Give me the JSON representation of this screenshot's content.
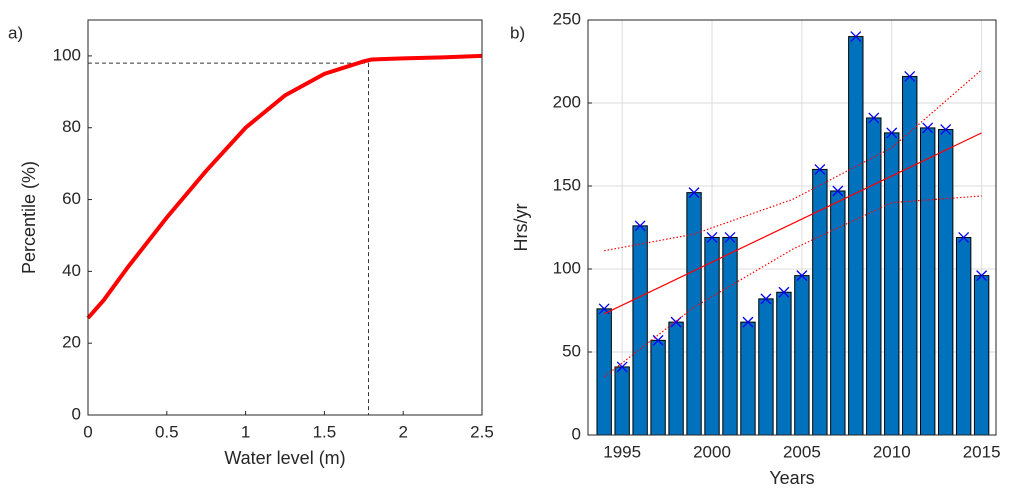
{
  "chart_data": [
    {
      "type": "line",
      "panel_label": "a)",
      "xlabel": "Water level (m)",
      "ylabel": "Percentile (%)",
      "x": [
        0,
        0.1,
        0.25,
        0.5,
        0.75,
        1,
        1.25,
        1.5,
        1.75,
        1.8,
        2,
        2.25,
        2.5
      ],
      "series": [
        {
          "color": "#ff0000",
          "values": [
            27,
            32,
            41,
            55,
            68,
            80,
            89,
            95,
            98.5,
            99,
            99.3,
            99.6,
            100
          ]
        }
      ],
      "xlim": [
        0,
        2.5
      ],
      "xticks": [
        0,
        0.5,
        1,
        1.5,
        2,
        2.5
      ],
      "ylim": [
        0,
        110
      ],
      "yticks": [
        0,
        20,
        40,
        60,
        80,
        100
      ],
      "reference": {
        "x": 1.78,
        "y": 98
      },
      "grid": false
    },
    {
      "type": "bar",
      "panel_label": "b)",
      "xlabel": "Years",
      "ylabel": "Hrs/yr",
      "x": [
        1994,
        1995,
        1996,
        1997,
        1998,
        1999,
        2000,
        2001,
        2002,
        2003,
        2004,
        2005,
        2006,
        2007,
        2008,
        2009,
        2010,
        2011,
        2012,
        2013,
        2014,
        2015
      ],
      "values": [
        76,
        41,
        126,
        57,
        68,
        146,
        119,
        119,
        68,
        82,
        86,
        96,
        160,
        147,
        240,
        191,
        182,
        216,
        185,
        184,
        119,
        96
      ],
      "color": "#0072bd",
      "marker_color": "#0000ff",
      "lines": [
        {
          "color": "#ff0000",
          "style": "solid",
          "x": [
            1994,
            2015
          ],
          "values": [
            73,
            182
          ]
        },
        {
          "color": "#ff0000",
          "style": "dotted",
          "x": [
            1994,
            1999,
            2004.5,
            2010,
            2015
          ],
          "values": [
            111,
            121,
            142,
            173,
            220
          ]
        },
        {
          "color": "#ff0000",
          "style": "dotted",
          "x": [
            1994,
            1999,
            2004.5,
            2010,
            2015
          ],
          "values": [
            35,
            77,
            112,
            140,
            144
          ]
        }
      ],
      "xlim": [
        1993.1,
        2015.8
      ],
      "xticks": [
        1995,
        2000,
        2005,
        2010,
        2015
      ],
      "ylim": [
        0,
        250
      ],
      "yticks": [
        0,
        50,
        100,
        150,
        200,
        250
      ],
      "grid": true
    }
  ]
}
